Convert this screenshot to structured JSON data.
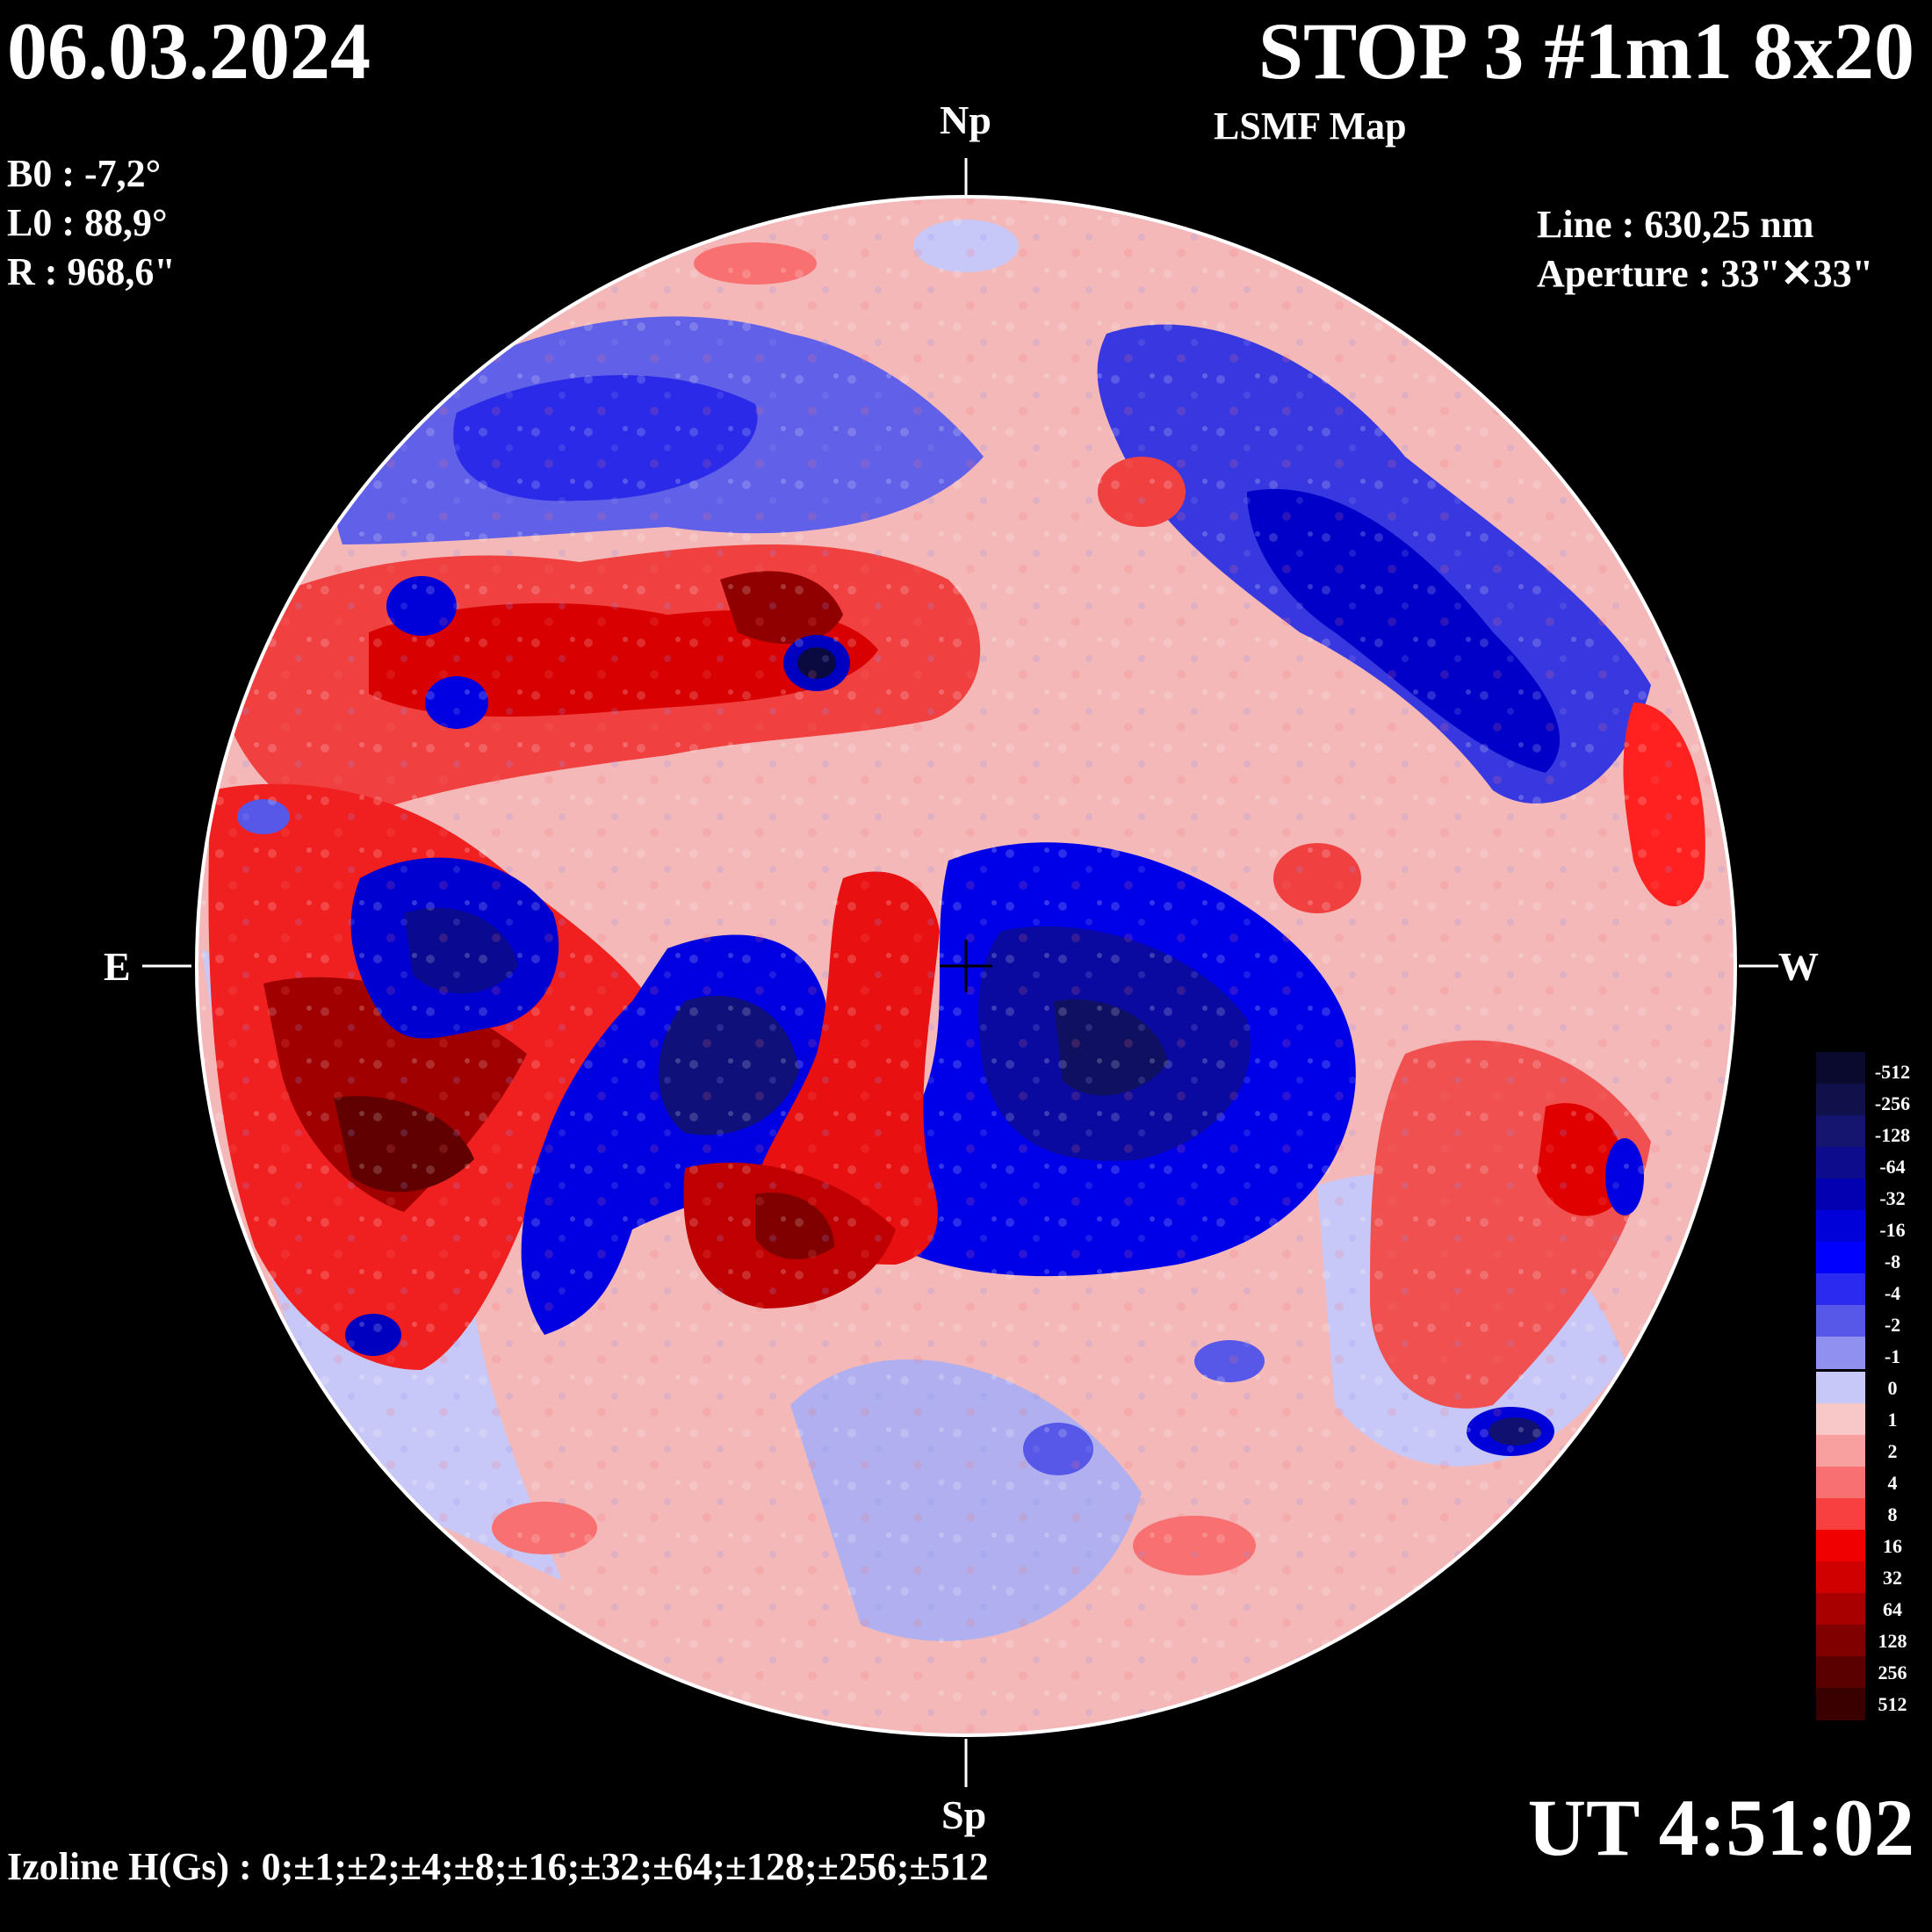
{
  "header": {
    "date": "06.03.2024",
    "title": "STOP 3 #1m1 8x20",
    "subtitle": "LSMF  Map"
  },
  "params": {
    "b0": "B0 : -7,2°",
    "l0": "L0 : 88,9°",
    "r": "R  : 968,6\""
  },
  "instrument": {
    "line": "Line :  630,25 nm",
    "aperture": "Aperture : 33\"✕33\""
  },
  "time": "UT 4:51:02",
  "footer": {
    "izoline": "Izoline H(Gs) : 0;±1;±2;±4;±8;±16;±32;±64;±128;±256;±512"
  },
  "directions": {
    "north": "Np",
    "south": "Sp",
    "east": "E",
    "west": "W"
  },
  "legend": {
    "labels": [
      "-512",
      "-256",
      "-128",
      "-64",
      "-32",
      "-16",
      "-8",
      "-4",
      "-2",
      "-1",
      "0",
      "1",
      "2",
      "4",
      "8",
      "16",
      "32",
      "64",
      "128",
      "256",
      "512"
    ],
    "colors": [
      "#0a0a2e",
      "#10104a",
      "#151570",
      "#0c0c8c",
      "#0000b0",
      "#0000d8",
      "#0000ff",
      "#2a2af0",
      "#5858e8",
      "#9090f0",
      "#c8c8f8",
      "#f8c8c8",
      "#f8a0a0",
      "#f87070",
      "#f84040",
      "#f00000",
      "#d00000",
      "#a80000",
      "#800000",
      "#5a0000",
      "#3a0000"
    ]
  }
}
